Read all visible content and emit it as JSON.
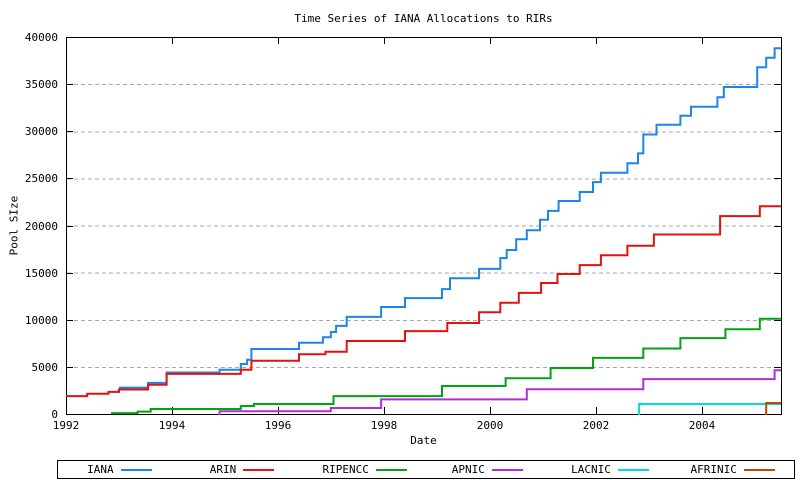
{
  "page": {
    "title": "Time Series of IANA Allocations to RIRs"
  },
  "chart_data": {
    "type": "line",
    "line_style": "step-after",
    "title": "Time Series of IANA Allocations to RIRs",
    "xlabel": "Date",
    "ylabel": "Pool SIze",
    "xlim": [
      1992,
      2005.5
    ],
    "ylim": [
      0,
      40000
    ],
    "x_ticks": [
      1992,
      1994,
      1996,
      1998,
      2000,
      2002,
      2004
    ],
    "y_ticks": [
      0,
      5000,
      10000,
      15000,
      20000,
      25000,
      30000,
      35000,
      40000
    ],
    "grid": "horizontal dashed gridlines at every y tick, none vertical",
    "gridline_color": "#a8a8a8",
    "border_color": "#000000",
    "legend_position": "bottom",
    "series": [
      {
        "name": "IANA",
        "color": "#1c86e8",
        "points": [
          [
            1993.0,
            2800
          ],
          [
            1993.55,
            3300
          ],
          [
            1993.9,
            4400
          ],
          [
            1994.9,
            4700
          ],
          [
            1995.3,
            5300
          ],
          [
            1995.42,
            5750
          ],
          [
            1995.5,
            6900
          ],
          [
            1996.4,
            7550
          ],
          [
            1996.85,
            8150
          ],
          [
            1997.0,
            8700
          ],
          [
            1997.1,
            9350
          ],
          [
            1997.3,
            10300
          ],
          [
            1997.95,
            11350
          ],
          [
            1998.4,
            12300
          ],
          [
            1999.1,
            13250
          ],
          [
            1999.25,
            14400
          ],
          [
            1999.8,
            15400
          ],
          [
            2000.2,
            16550
          ],
          [
            2000.32,
            17400
          ],
          [
            2000.5,
            18550
          ],
          [
            2000.7,
            19500
          ],
          [
            2000.95,
            20600
          ],
          [
            2001.1,
            21550
          ],
          [
            2001.3,
            22600
          ],
          [
            2001.7,
            23550
          ],
          [
            2001.95,
            24600
          ],
          [
            2002.1,
            25600
          ],
          [
            2002.6,
            26600
          ],
          [
            2002.8,
            27650
          ],
          [
            2002.9,
            29650
          ],
          [
            2003.15,
            30700
          ],
          [
            2003.6,
            31650
          ],
          [
            2003.8,
            32600
          ],
          [
            2004.3,
            33600
          ],
          [
            2004.42,
            34700
          ],
          [
            2005.05,
            36800
          ],
          [
            2005.22,
            37800
          ],
          [
            2005.38,
            38800
          ]
        ]
      },
      {
        "name": "ARIN",
        "color": "#e31210",
        "points": [
          [
            1992.0,
            1900
          ],
          [
            1992.4,
            2150
          ],
          [
            1992.8,
            2350
          ],
          [
            1993.0,
            2600
          ],
          [
            1993.55,
            3100
          ],
          [
            1993.9,
            4250
          ],
          [
            1995.3,
            4700
          ],
          [
            1995.5,
            5650
          ],
          [
            1996.4,
            6350
          ],
          [
            1996.9,
            6600
          ],
          [
            1997.3,
            7750
          ],
          [
            1998.4,
            8800
          ],
          [
            1999.2,
            9650
          ],
          [
            1999.8,
            10800
          ],
          [
            2000.2,
            11800
          ],
          [
            2000.55,
            12850
          ],
          [
            2000.97,
            13900
          ],
          [
            2001.28,
            14850
          ],
          [
            2001.7,
            15800
          ],
          [
            2002.1,
            16850
          ],
          [
            2002.6,
            17850
          ],
          [
            2003.1,
            19050
          ],
          [
            2004.35,
            21000
          ],
          [
            2005.1,
            22050
          ]
        ]
      },
      {
        "name": "RIPENCC",
        "color": "#00a413",
        "points": [
          [
            1992.85,
            100
          ],
          [
            1993.35,
            250
          ],
          [
            1993.6,
            530
          ],
          [
            1995.3,
            850
          ],
          [
            1995.55,
            1060
          ],
          [
            1997.05,
            1900
          ],
          [
            1999.1,
            2970
          ],
          [
            2000.3,
            3800
          ],
          [
            2001.15,
            4880
          ],
          [
            2001.95,
            5950
          ],
          [
            2002.9,
            6950
          ],
          [
            2003.6,
            8050
          ],
          [
            2004.45,
            9000
          ],
          [
            2005.1,
            10100
          ]
        ]
      },
      {
        "name": "APNIC",
        "color": "#b02fd9",
        "points": [
          [
            1994.88,
            0
          ],
          [
            1994.9,
            300
          ],
          [
            1997.0,
            640
          ],
          [
            1997.95,
            1550
          ],
          [
            2000.7,
            2620
          ],
          [
            2002.9,
            3700
          ],
          [
            2005.38,
            4650
          ]
        ]
      },
      {
        "name": "LACNIC",
        "color": "#00dada",
        "points": [
          [
            2002.8,
            0
          ],
          [
            2002.82,
            1060
          ]
        ]
      },
      {
        "name": "AFRINIC",
        "color": "#b84b0a",
        "points": [
          [
            2005.2,
            0
          ],
          [
            2005.22,
            1170
          ]
        ]
      }
    ]
  }
}
